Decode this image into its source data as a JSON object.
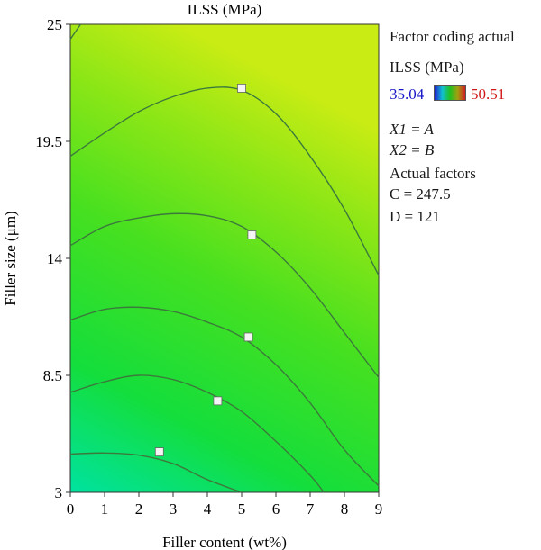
{
  "chart_data": {
    "type": "contour",
    "title": "ILSS (MPa)",
    "xlabel": "Filler content (wt%)",
    "ylabel": "Filler size (μm)",
    "xlim": [
      0,
      9
    ],
    "ylim": [
      3,
      25
    ],
    "x_ticks": [
      "0",
      "1",
      "2",
      "3",
      "4",
      "5",
      "6",
      "7",
      "8",
      "9"
    ],
    "y_ticks": [
      "3",
      "8.5",
      "14",
      "19.5",
      "25"
    ],
    "colorbar": {
      "min_label": "35.04",
      "max_label": "50.51",
      "min_color": "#00e2a0",
      "max_color": "#c8ec14"
    },
    "contours": [
      {
        "label_box": {
          "x": 2.6,
          "y": 4.9
        },
        "points": [
          [
            0,
            4.8
          ],
          [
            1,
            4.85
          ],
          [
            2,
            4.75
          ],
          [
            3,
            4.35
          ],
          [
            4,
            3.6
          ],
          [
            5,
            3.0
          ]
        ]
      },
      {
        "label_box": {
          "x": 4.3,
          "y": 7.3
        },
        "points": [
          [
            0,
            7.7
          ],
          [
            1,
            8.2
          ],
          [
            2,
            8.5
          ],
          [
            3,
            8.3
          ],
          [
            4,
            7.7
          ],
          [
            5,
            6.8
          ],
          [
            6,
            5.4
          ],
          [
            7,
            3.8
          ],
          [
            7.4,
            3.0
          ]
        ]
      },
      {
        "label_box": {
          "x": 5.2,
          "y": 10.3
        },
        "points": [
          [
            0,
            11.1
          ],
          [
            1,
            11.6
          ],
          [
            2,
            11.7
          ],
          [
            3,
            11.5
          ],
          [
            4,
            11.0
          ],
          [
            5,
            10.3
          ],
          [
            6,
            9.0
          ],
          [
            7,
            7.2
          ],
          [
            8,
            5.0
          ],
          [
            9,
            3.3
          ]
        ]
      },
      {
        "label_box": {
          "x": 5.3,
          "y": 15.1
        },
        "points": [
          [
            0,
            14.6
          ],
          [
            1,
            15.5
          ],
          [
            2,
            15.9
          ],
          [
            3,
            16.1
          ],
          [
            4,
            16.0
          ],
          [
            5,
            15.5
          ],
          [
            6,
            14.3
          ],
          [
            7,
            12.6
          ],
          [
            8,
            10.5
          ],
          [
            9,
            8.4
          ]
        ]
      },
      {
        "label_box": {
          "x": 5.0,
          "y": 22.0
        },
        "points": [
          [
            0,
            18.8
          ],
          [
            1,
            19.9
          ],
          [
            2,
            20.9
          ],
          [
            3,
            21.6
          ],
          [
            4,
            22.0
          ],
          [
            5,
            21.9
          ],
          [
            6,
            20.8
          ],
          [
            7,
            18.8
          ],
          [
            8,
            16.3
          ],
          [
            9,
            13.2
          ]
        ]
      },
      {
        "label_box": null,
        "points": [
          [
            0,
            24.3
          ],
          [
            0.3,
            25
          ]
        ]
      }
    ]
  },
  "legend": {
    "coding": "Factor coding actual",
    "response": "ILSS (MPa)",
    "x1": "X1 = A",
    "x2": "X2 = B",
    "actual_header": "Actual factors",
    "c": "C = 247.5",
    "d": "D = 121"
  }
}
